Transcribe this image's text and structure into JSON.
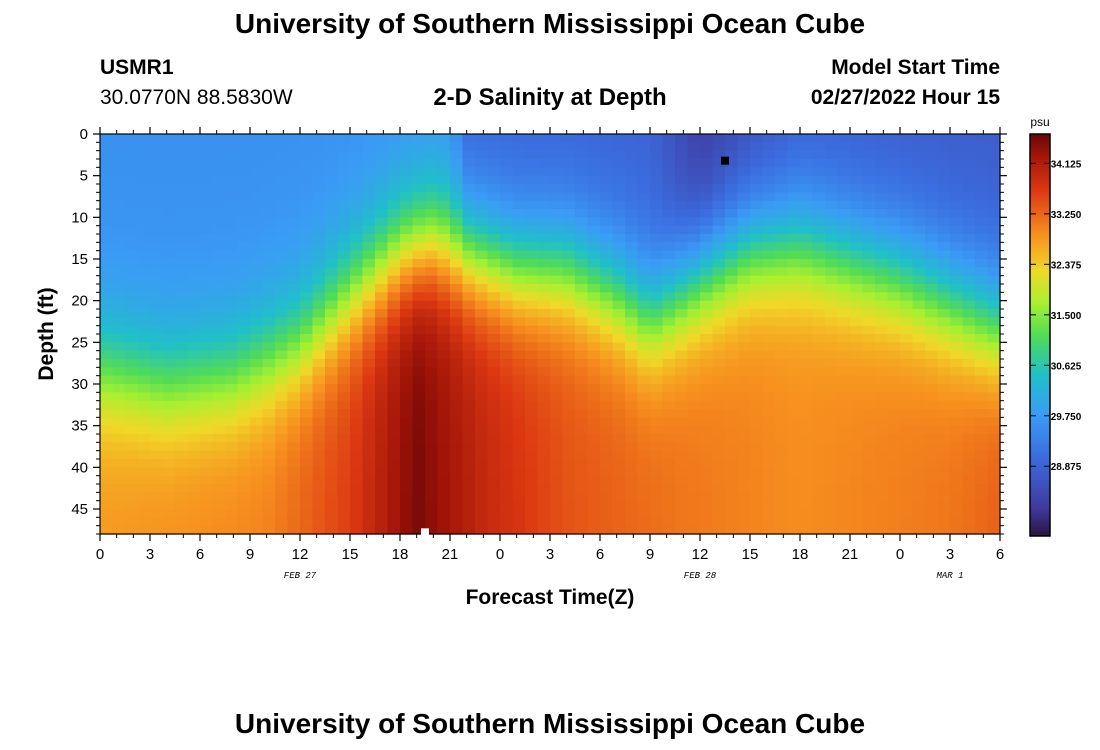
{
  "header": {
    "title": "University of Southern Mississippi Ocean Cube",
    "station_id": "USMR1",
    "coords": "30.0770N  88.5830W",
    "chart_title": "2-D Salinity at Depth",
    "model_start_label": "Model Start Time",
    "model_start_value": "02/27/2022 Hour 15"
  },
  "footer": {
    "title": "University of Southern Mississippi Ocean Cube"
  },
  "chart_data": {
    "type": "heatmap",
    "title": "2-D Salinity at Depth",
    "xlabel": "Forecast Time(Z)",
    "ylabel": "Depth (ft)",
    "x_range_hours": [
      0,
      54
    ],
    "x_ticks": [
      "0",
      "3",
      "6",
      "9",
      "12",
      "15",
      "18",
      "21",
      "0",
      "3",
      "6",
      "9",
      "12",
      "15",
      "18",
      "21",
      "0",
      "3",
      "6"
    ],
    "date_labels": [
      {
        "label": "FEB 27",
        "hour": 12
      },
      {
        "label": "FEB 28",
        "hour": 36
      },
      {
        "label": "MAR 1",
        "hour": 51
      }
    ],
    "ylim": [
      0,
      48
    ],
    "y_ticks": [
      0,
      5,
      10,
      15,
      20,
      25,
      30,
      35,
      40,
      45
    ],
    "colorbar": {
      "unit": "psu",
      "min": 27.7,
      "max": 34.6,
      "ticks": [
        "34.125",
        "33.250",
        "32.375",
        "31.500",
        "30.625",
        "29.750",
        "28.875"
      ]
    },
    "markers": [
      {
        "name": "max-marker",
        "hour": 19.5,
        "depth": 47.8,
        "color": "#ffffff"
      },
      {
        "name": "min-marker",
        "hour": 37.5,
        "depth": 3.2,
        "color": "#000000"
      }
    ],
    "surface_salinity_psu": {
      "hours": [
        0,
        21,
        22,
        33,
        36,
        38,
        42,
        54
      ],
      "values": [
        29.6,
        29.6,
        28.9,
        28.9,
        28.2,
        28.4,
        28.8,
        28.8
      ]
    },
    "bottom_salinity_psu": {
      "hours": [
        0,
        10,
        15,
        19,
        23,
        28,
        35,
        42,
        47,
        51,
        54
      ],
      "values": [
        32.8,
        33.0,
        33.6,
        34.5,
        33.9,
        33.4,
        33.1,
        32.9,
        33.0,
        33.1,
        33.3
      ]
    },
    "halocline_depth_ft": {
      "hours": [
        0,
        4,
        8,
        12,
        15,
        18,
        20,
        22,
        25,
        28,
        31,
        33,
        36,
        39,
        42,
        45,
        48,
        51,
        54
      ],
      "values": [
        29,
        31,
        30,
        26,
        20,
        15,
        13.5,
        15,
        17,
        17,
        20,
        23,
        18,
        14.5,
        14,
        16,
        18,
        21,
        24
      ]
    }
  },
  "colors": {
    "background": "#ffffff",
    "text": "#000000"
  }
}
